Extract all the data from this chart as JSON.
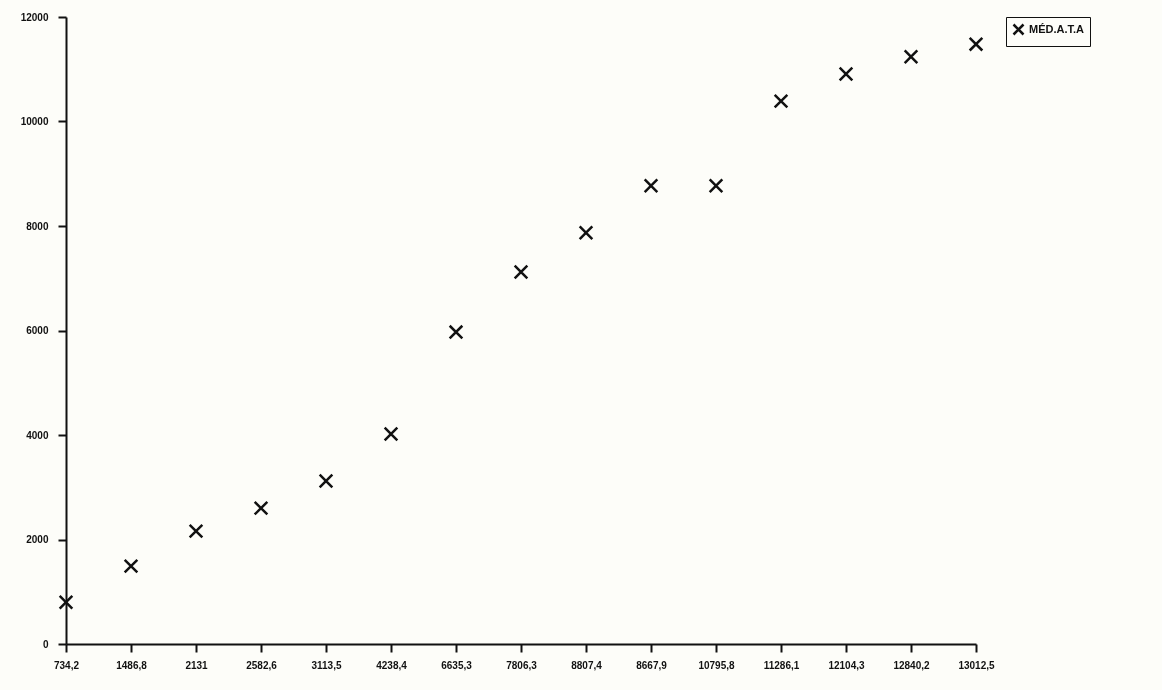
{
  "chart_data": {
    "type": "scatter",
    "categories": [
      "734,2",
      "1486,8",
      "2131",
      "2582,6",
      "3113,5",
      "4238,4",
      "6635,3",
      "7806,3",
      "8807,4",
      "8667,9",
      "10795,8",
      "11286,1",
      "12104,3",
      "12840,2",
      "13012,5"
    ],
    "series": [
      {
        "name": "MÉD.A.T.A",
        "color": "#111111",
        "values": [
          800,
          1490,
          2160,
          2600,
          3120,
          4020,
          5970,
          7120,
          7870,
          8770,
          8770,
          10390,
          10910,
          11240,
          11480
        ]
      }
    ],
    "ylim": [
      0,
      12000
    ],
    "yticks": [
      0,
      2000,
      4000,
      6000,
      8000,
      10000,
      12000
    ],
    "grid": false,
    "legend": "right",
    "marker": "cross"
  }
}
